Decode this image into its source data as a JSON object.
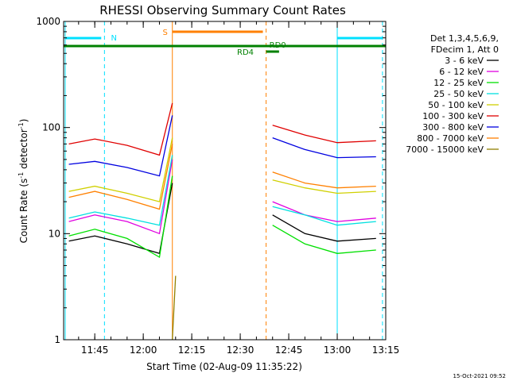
{
  "chart_data": {
    "type": "line",
    "title": "RHESSI Observing Summary Count Rates",
    "xlabel": "Start Time (02-Aug-09 11:35:22)",
    "ylabel_main": "Count Rate (s",
    "ylabel_exp1": "-1",
    "ylabel_mid": " detector",
    "ylabel_exp2": "-1",
    "ylabel_end": ")",
    "y_scale": "log",
    "ylim": [
      1,
      1000
    ],
    "xlim": [
      "11:35:22",
      "13:15:00"
    ],
    "x_ticks": [
      "11:45",
      "12:00",
      "12:15",
      "12:30",
      "12:45",
      "13:00",
      "13:15"
    ],
    "y_ticks": [
      "1",
      "10",
      "100",
      "1000"
    ],
    "legend_header": [
      "Det 1,3,4,5,6,9,",
      "FDecim 1, Att 0"
    ],
    "legend_position": "right",
    "series": [
      {
        "name": "3 - 6 keV",
        "color": "#000000",
        "values": [
          {
            "t": "11:37",
            "y": 8.5
          },
          {
            "t": "11:45",
            "y": 9.5
          },
          {
            "t": "11:55",
            "y": 8
          },
          {
            "t": "12:05",
            "y": 6.5
          },
          {
            "t": "12:09",
            "y": 30
          },
          {
            "t": "12:40",
            "y": 15
          },
          {
            "t": "12:50",
            "y": 10
          },
          {
            "t": "13:00",
            "y": 8.5
          },
          {
            "t": "13:12",
            "y": 9
          }
        ]
      },
      {
        "name": "6 - 12 keV",
        "color": "#e000e0",
        "values": [
          {
            "t": "11:37",
            "y": 13
          },
          {
            "t": "11:45",
            "y": 15
          },
          {
            "t": "11:55",
            "y": 13
          },
          {
            "t": "12:05",
            "y": 10
          },
          {
            "t": "12:09",
            "y": 50
          },
          {
            "t": "12:40",
            "y": 20
          },
          {
            "t": "12:50",
            "y": 15
          },
          {
            "t": "13:00",
            "y": 13
          },
          {
            "t": "13:12",
            "y": 14
          }
        ]
      },
      {
        "name": "12 - 25 keV",
        "color": "#00e000",
        "values": [
          {
            "t": "11:37",
            "y": 9.5
          },
          {
            "t": "11:45",
            "y": 11
          },
          {
            "t": "11:55",
            "y": 9
          },
          {
            "t": "12:05",
            "y": 6
          },
          {
            "t": "12:09",
            "y": 35
          },
          {
            "t": "12:40",
            "y": 12
          },
          {
            "t": "12:50",
            "y": 8
          },
          {
            "t": "13:00",
            "y": 6.5
          },
          {
            "t": "13:12",
            "y": 7
          }
        ]
      },
      {
        "name": "25 - 50 keV",
        "color": "#00e0e0",
        "values": [
          {
            "t": "11:37",
            "y": 14
          },
          {
            "t": "11:45",
            "y": 16
          },
          {
            "t": "11:55",
            "y": 14
          },
          {
            "t": "12:05",
            "y": 12
          },
          {
            "t": "12:09",
            "y": 55
          },
          {
            "t": "12:40",
            "y": 18
          },
          {
            "t": "12:50",
            "y": 15
          },
          {
            "t": "13:00",
            "y": 12
          },
          {
            "t": "13:12",
            "y": 13
          }
        ]
      },
      {
        "name": "50 - 100 keV",
        "color": "#d0d000",
        "values": [
          {
            "t": "11:37",
            "y": 25
          },
          {
            "t": "11:45",
            "y": 28
          },
          {
            "t": "11:55",
            "y": 24
          },
          {
            "t": "12:05",
            "y": 20
          },
          {
            "t": "12:09",
            "y": 80
          },
          {
            "t": "12:40",
            "y": 32
          },
          {
            "t": "12:50",
            "y": 27
          },
          {
            "t": "13:00",
            "y": 24
          },
          {
            "t": "13:12",
            "y": 25
          }
        ]
      },
      {
        "name": "100 - 300 keV",
        "color": "#e00000",
        "values": [
          {
            "t": "11:37",
            "y": 70
          },
          {
            "t": "11:45",
            "y": 78
          },
          {
            "t": "11:55",
            "y": 68
          },
          {
            "t": "12:05",
            "y": 55
          },
          {
            "t": "12:09",
            "y": 170
          },
          {
            "t": "12:40",
            "y": 105
          },
          {
            "t": "12:50",
            "y": 85
          },
          {
            "t": "13:00",
            "y": 72
          },
          {
            "t": "13:12",
            "y": 75
          }
        ]
      },
      {
        "name": "300 - 800 keV",
        "color": "#0000e0",
        "values": [
          {
            "t": "11:37",
            "y": 45
          },
          {
            "t": "11:45",
            "y": 48
          },
          {
            "t": "11:55",
            "y": 42
          },
          {
            "t": "12:05",
            "y": 35
          },
          {
            "t": "12:09",
            "y": 130
          },
          {
            "t": "12:40",
            "y": 80
          },
          {
            "t": "12:50",
            "y": 62
          },
          {
            "t": "13:00",
            "y": 52
          },
          {
            "t": "13:12",
            "y": 53
          }
        ]
      },
      {
        "name": "800 - 7000 keV",
        "color": "#ff8000",
        "values": [
          {
            "t": "11:37",
            "y": 22
          },
          {
            "t": "11:45",
            "y": 25
          },
          {
            "t": "11:55",
            "y": 21
          },
          {
            "t": "12:05",
            "y": 17
          },
          {
            "t": "12:09",
            "y": 70
          },
          {
            "t": "12:40",
            "y": 38
          },
          {
            "t": "12:50",
            "y": 30
          },
          {
            "t": "13:00",
            "y": 27
          },
          {
            "t": "13:12",
            "y": 28
          }
        ]
      },
      {
        "name": "7000 - 15000 keV",
        "color": "#908000",
        "values": [
          {
            "t": "12:09",
            "y": 1
          },
          {
            "t": "12:10",
            "y": 4
          }
        ]
      }
    ],
    "markers": {
      "N_label": "N",
      "S_label": "S",
      "RD4_label": "RD4",
      "RD0_label": "RD0"
    },
    "timestamp": "15-Oct-2021 09:52"
  }
}
